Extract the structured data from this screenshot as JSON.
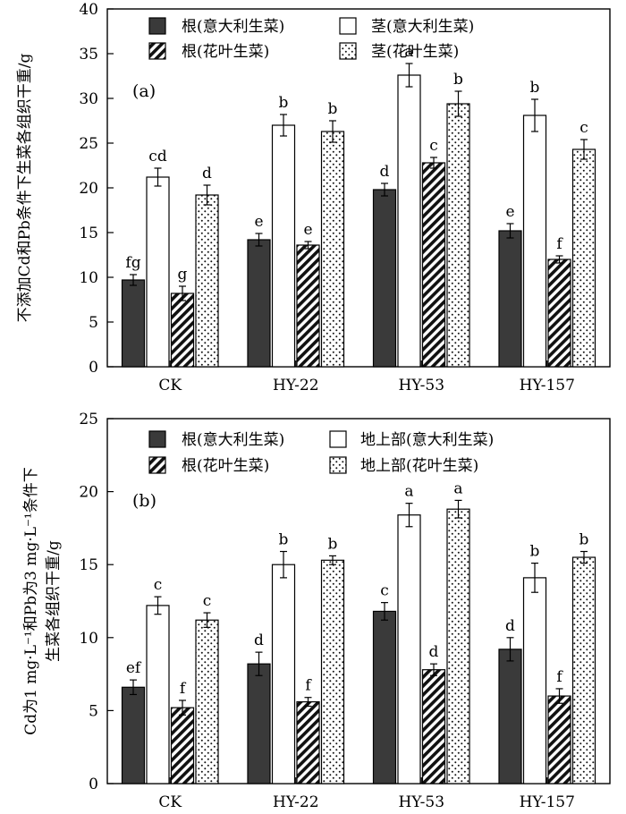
{
  "chart_data": [
    {
      "type": "bar",
      "panel_label": "(a)",
      "ylabel": "不添加Cd和Pb条件下生菜各组织干重/g",
      "ylim": [
        0,
        40
      ],
      "yticks": [
        0,
        5,
        10,
        15,
        20,
        25,
        30,
        35,
        40
      ],
      "categories": [
        "CK",
        "HY-22",
        "HY-53",
        "HY-157"
      ],
      "legend_placement": "top",
      "series": [
        {
          "name": "根(意大利生菜)",
          "pattern": "solid",
          "values": [
            9.7,
            14.2,
            19.8,
            15.2
          ],
          "errors": [
            0.6,
            0.7,
            0.7,
            0.8
          ],
          "letters": [
            "fg",
            "e",
            "d",
            "e"
          ]
        },
        {
          "name": "茎(意大利生菜)",
          "pattern": "open",
          "values": [
            21.2,
            27.0,
            32.6,
            28.1
          ],
          "errors": [
            1.0,
            1.2,
            1.3,
            1.8
          ],
          "letters": [
            "cd",
            "b",
            "a",
            "b"
          ]
        },
        {
          "name": "根(花叶生菜)",
          "pattern": "hatch",
          "values": [
            8.2,
            13.6,
            22.8,
            12.0
          ],
          "errors": [
            0.8,
            0.4,
            0.6,
            0.4
          ],
          "letters": [
            "g",
            "e",
            "c",
            "f"
          ]
        },
        {
          "name": "茎(花叶生菜)",
          "pattern": "dots",
          "values": [
            19.2,
            26.3,
            29.4,
            24.3
          ],
          "errors": [
            1.1,
            1.2,
            1.4,
            1.1
          ],
          "letters": [
            "d",
            "b",
            "b",
            "c"
          ]
        }
      ]
    },
    {
      "type": "bar",
      "panel_label": "(b)",
      "ylabel_line1": "Cd为1 mg·L⁻¹和Pb为3 mg·L⁻¹条件下",
      "ylabel_line2": "生菜各组织干重/g",
      "ylim": [
        0,
        25
      ],
      "yticks": [
        0,
        5,
        10,
        15,
        20,
        25
      ],
      "categories": [
        "CK",
        "HY-22",
        "HY-53",
        "HY-157"
      ],
      "legend_placement": "top",
      "series": [
        {
          "name": "根(意大利生菜)",
          "pattern": "solid",
          "values": [
            6.6,
            8.2,
            11.8,
            9.2
          ],
          "errors": [
            0.5,
            0.8,
            0.6,
            0.8
          ],
          "letters": [
            "ef",
            "d",
            "c",
            "d"
          ]
        },
        {
          "name": "地上部(意大利生菜)",
          "pattern": "open",
          "values": [
            12.2,
            15.0,
            18.4,
            14.1
          ],
          "errors": [
            0.6,
            0.9,
            0.8,
            1.0
          ],
          "letters": [
            "c",
            "b",
            "a",
            "b"
          ]
        },
        {
          "name": "根(花叶生菜)",
          "pattern": "hatch",
          "values": [
            5.2,
            5.6,
            7.8,
            6.0
          ],
          "errors": [
            0.5,
            0.3,
            0.4,
            0.5
          ],
          "letters": [
            "f",
            "f",
            "d",
            "f"
          ]
        },
        {
          "name": "地上部(花叶生菜)",
          "pattern": "dots",
          "values": [
            11.2,
            15.3,
            18.8,
            15.5
          ],
          "errors": [
            0.5,
            0.3,
            0.6,
            0.4
          ],
          "letters": [
            "c",
            "b",
            "a",
            "b"
          ]
        }
      ]
    }
  ]
}
